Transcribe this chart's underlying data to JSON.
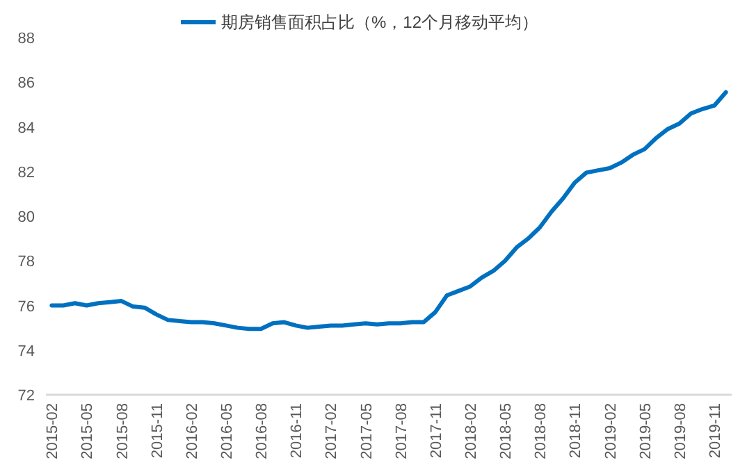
{
  "chart_data": {
    "type": "line",
    "categories": [
      "2015-02",
      null,
      null,
      "2015-05",
      null,
      null,
      "2015-08",
      null,
      null,
      "2015-11",
      null,
      null,
      "2016-02",
      null,
      null,
      "2016-05",
      null,
      null,
      "2016-08",
      null,
      null,
      "2016-11",
      null,
      null,
      "2017-02",
      null,
      null,
      "2017-05",
      null,
      null,
      "2017-08",
      null,
      null,
      "2017-11",
      null,
      null,
      "2018-02",
      null,
      null,
      "2018-05",
      null,
      null,
      "2018-08",
      null,
      null,
      "2018-11",
      null,
      null,
      "2019-02",
      null,
      null,
      "2019-05",
      null,
      null,
      "2019-08",
      null,
      null,
      "2019-11",
      null
    ],
    "series": [
      {
        "name": "期房销售面积占比（%，12个月移动平均）",
        "color": "#0070c0",
        "values": [
          76.0,
          76.0,
          76.1,
          76.0,
          76.1,
          76.15,
          76.2,
          75.95,
          75.9,
          75.6,
          75.35,
          75.3,
          75.25,
          75.25,
          75.2,
          75.1,
          75.0,
          74.95,
          74.95,
          75.2,
          75.25,
          75.1,
          75.0,
          75.05,
          75.1,
          75.1,
          75.15,
          75.2,
          75.15,
          75.2,
          75.2,
          75.25,
          75.25,
          75.7,
          76.45,
          76.65,
          76.85,
          77.25,
          77.55,
          78.0,
          78.6,
          79.0,
          79.5,
          80.2,
          80.8,
          81.5,
          81.95,
          82.05,
          82.15,
          82.4,
          82.75,
          83.0,
          83.5,
          83.9,
          84.15,
          84.6,
          84.8,
          84.95,
          85.55
        ]
      }
    ],
    "ylim": [
      72,
      88
    ],
    "yticks": [
      72,
      74,
      76,
      78,
      80,
      82,
      84,
      86,
      88
    ],
    "legend": "top",
    "line_style": "solid"
  }
}
